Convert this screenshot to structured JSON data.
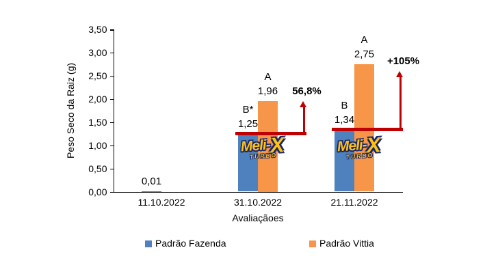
{
  "chart_data": {
    "type": "bar",
    "title": "",
    "ylabel": "Peso Seco da Raiz (g)",
    "xlabel": "Avaliaçãoes",
    "ylim": [
      0,
      3.5
    ],
    "ytick_step": 0.5,
    "ytick_labels": [
      "0,00",
      "0,50",
      "1,00",
      "1,50",
      "2,00",
      "2,50",
      "3,00",
      "3,50"
    ],
    "categories": [
      "11.10.2022",
      "31.10.2022",
      "21.11.2022"
    ],
    "grid": false,
    "legend_position": "bottom",
    "series": [
      {
        "name": "Padrão Fazenda",
        "color": "#4E81BD",
        "values": [
          0.01,
          1.25,
          1.34
        ],
        "value_labels": [
          "0,01",
          "1,25",
          "1,34"
        ],
        "letter_labels": [
          "",
          "B*",
          "B"
        ]
      },
      {
        "name": "Padrão Vittia",
        "color": "#F79648",
        "values": [
          null,
          1.96,
          2.75
        ],
        "value_labels": [
          "",
          "1,96",
          "2,75"
        ],
        "letter_labels": [
          "",
          "A",
          "A"
        ]
      }
    ],
    "annotations": [
      {
        "label": "56,8%",
        "ref_level": 1.25,
        "category_index": 1,
        "arrow_top_level": 1.95
      },
      {
        "label": "+105%",
        "ref_level": 1.34,
        "category_index": 2,
        "arrow_top_level": 2.6
      }
    ]
  },
  "logo": {
    "word": "Meli-",
    "x": "X",
    "sub": "TURBO",
    "category_indices": [
      1,
      2
    ]
  },
  "colors": {
    "bar_blue": "#4E81BD",
    "bar_orange": "#F79648",
    "annotation_red": "#C00000",
    "axis": "#000000"
  }
}
